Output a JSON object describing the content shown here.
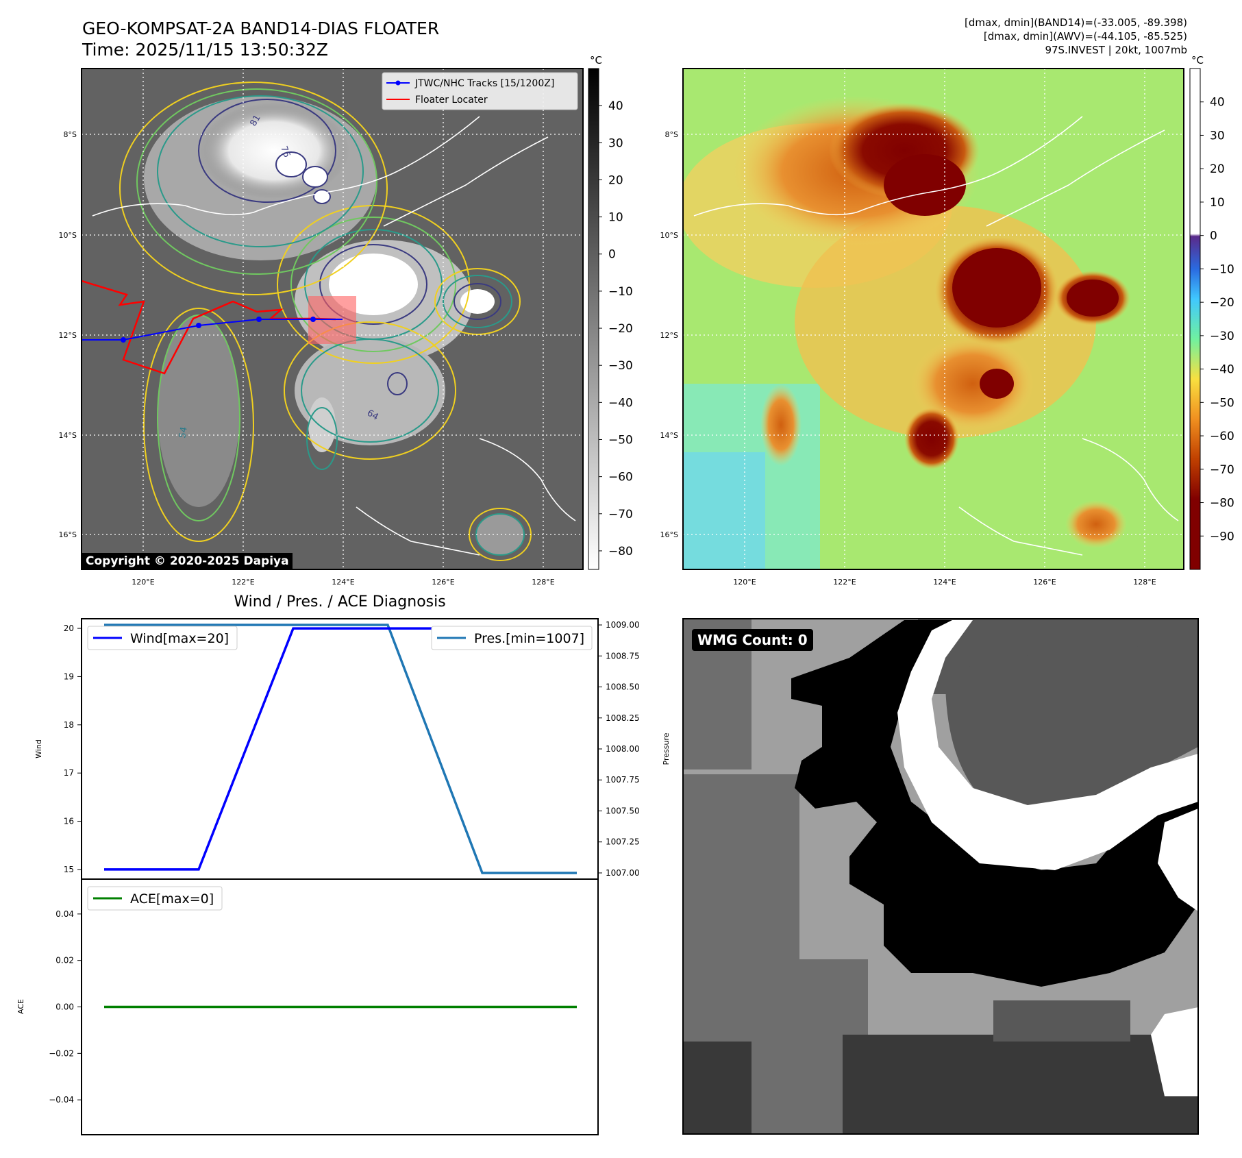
{
  "header": {
    "title": "GEO-KOMPSAT-2A BAND14-DIAS FLOATER",
    "time": "Time: 2025/11/15 13:50:32Z",
    "stats_band14": "[dmax, dmin](BAND14)=(-33.005, -89.398)",
    "stats_awv": "[dmax, dmin](AWV)=(-44.105, -85.525)",
    "storm": "97S.INVEST | 20kt, 1007mb"
  },
  "map": {
    "lon_ticks": [
      "120°E",
      "122°E",
      "124°E",
      "126°E",
      "128°E"
    ],
    "lat_ticks": [
      "8°S",
      "10°S",
      "12°S",
      "14°S",
      "16°S"
    ],
    "copyright": "Copyright © 2020-2025 Dapiya",
    "legend": {
      "tracks": "JTWC/NHC Tracks [15/1200Z]",
      "locater": "Floater Locater"
    },
    "contour_labels": [
      "81",
      "76",
      "64",
      "54"
    ],
    "track_color": "#0000ff",
    "locater_color": "#ff0000"
  },
  "colorbar_ir": {
    "unit": "°C",
    "ticks": [
      "40",
      "30",
      "20",
      "10",
      "0",
      "−10",
      "−20",
      "−30",
      "−40",
      "−50",
      "−60",
      "−70",
      "−80"
    ]
  },
  "colorbar_awv": {
    "unit": "°C",
    "ticks": [
      "40",
      "30",
      "20",
      "10",
      "0",
      "−10",
      "−20",
      "−30",
      "−40",
      "−50",
      "−60",
      "−70",
      "−80",
      "−90"
    ]
  },
  "diagnosis": {
    "title": "Wind / Pres. / ACE Diagnosis",
    "wind_ylabel": "Wind",
    "pres_ylabel": "Pressure",
    "ace_ylabel": "ACE",
    "wind_legend": "Wind[max=20]",
    "pres_legend": "Pres.[min=1007]",
    "ace_legend": "ACE[max=0]",
    "wind_ticks": [
      "20",
      "19",
      "18",
      "17",
      "16",
      "15"
    ],
    "pres_ticks": [
      "1009.00",
      "1008.75",
      "1008.50",
      "1008.25",
      "1008.00",
      "1007.75",
      "1007.50",
      "1007.25",
      "1007.00"
    ],
    "ace_ticks": [
      "0.04",
      "0.02",
      "0.00",
      "−0.02",
      "−0.04"
    ]
  },
  "wmg": {
    "label": "WMG Count: 0"
  },
  "chart_data": [
    {
      "type": "line",
      "title": "Wind / Pres. / ACE Diagnosis",
      "ylabel": "Wind",
      "ylim": [
        14.8,
        20.2
      ],
      "x": [
        0,
        1,
        2,
        3,
        4,
        5
      ],
      "series": [
        {
          "name": "Wind[max=20]",
          "values": [
            15,
            15,
            20,
            20,
            20,
            20
          ],
          "color": "#0000ff"
        }
      ]
    },
    {
      "type": "line",
      "ylabel": "Pressure",
      "ylim": [
        1006.95,
        1009.05
      ],
      "x": [
        0,
        1,
        2,
        3,
        4,
        5
      ],
      "series": [
        {
          "name": "Pres.[min=1007]",
          "values": [
            1009,
            1009,
            1009,
            1009,
            1007,
            1007
          ],
          "color": "#1f77b4"
        }
      ]
    },
    {
      "type": "line",
      "ylabel": "ACE",
      "ylim": [
        -0.055,
        0.055
      ],
      "x": [
        0,
        1,
        2,
        3,
        4,
        5
      ],
      "series": [
        {
          "name": "ACE[max=0]",
          "values": [
            0,
            0,
            0,
            0,
            0,
            0
          ],
          "color": "#008000"
        }
      ]
    }
  ]
}
